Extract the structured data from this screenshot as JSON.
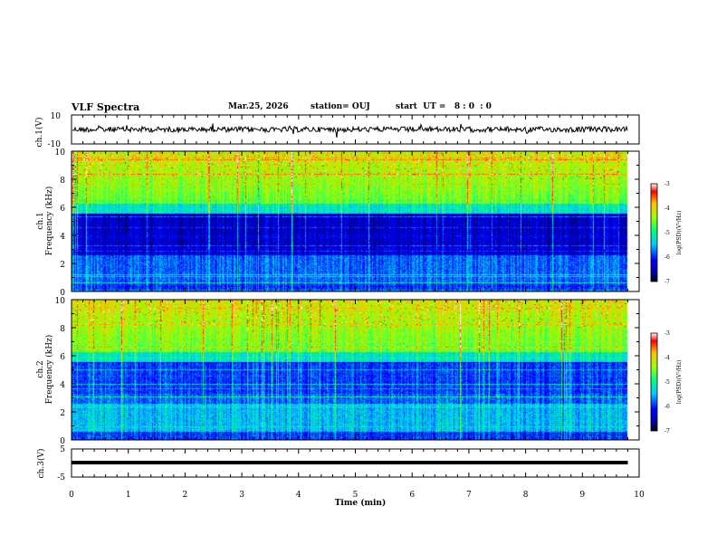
{
  "header": {
    "title": "VLF Spectra",
    "date": "Mar.25, 2026",
    "station": "station= OUJ",
    "start": "start  UT =   8 : 0  : 0"
  },
  "chart_data": {
    "type": "heatmap",
    "title": "VLF Spectra",
    "xlabel": "Time  (min)",
    "xlim": [
      0,
      10
    ],
    "x_ticks": [
      "0",
      "1",
      "2",
      "3",
      "4",
      "5",
      "6",
      "7",
      "8",
      "9",
      "10"
    ],
    "waveform_ch1": {
      "ylabel": "ch.1(V)",
      "ylim": [
        -10,
        10
      ],
      "y_ticks": [
        "10",
        "-10"
      ]
    },
    "spectrogram_ch1": {
      "ylabel_top": "ch.1",
      "ylabel": "Frequency (kHz)",
      "ylim": [
        0,
        10
      ],
      "y_ticks": [
        "10",
        "8",
        "6",
        "4",
        "2",
        "0"
      ]
    },
    "spectrogram_ch2": {
      "ylabel_top": "ch.2",
      "ylabel": "Frequency (kHz)",
      "ylim": [
        0,
        10
      ],
      "y_ticks": [
        "10",
        "8",
        "6",
        "4",
        "2",
        "0"
      ]
    },
    "waveform_ch3": {
      "ylabel": "ch.3(V)",
      "ylim": [
        -5,
        5
      ],
      "y_ticks": [
        "5",
        "-5"
      ]
    },
    "colorbar": {
      "label": "log(PSD)(V²/Hz)",
      "range": [
        -7,
        -3
      ],
      "ticks": [
        "-3",
        "-4",
        "-5",
        "-6",
        "-7"
      ]
    },
    "data_end_min": 9.8
  },
  "colors": {
    "axis": "#000000"
  }
}
